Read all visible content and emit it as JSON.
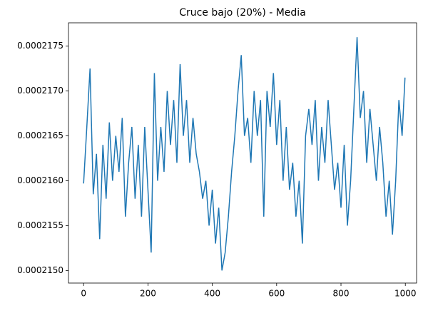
{
  "chart_data": {
    "type": "line",
    "title": "Cruce bajo (20%) - Media",
    "x": [
      0,
      10,
      20,
      30,
      40,
      50,
      60,
      70,
      80,
      90,
      100,
      110,
      120,
      130,
      140,
      150,
      160,
      170,
      180,
      190,
      200,
      210,
      220,
      230,
      240,
      250,
      260,
      270,
      280,
      290,
      300,
      310,
      320,
      330,
      340,
      350,
      360,
      370,
      380,
      390,
      400,
      410,
      420,
      430,
      440,
      450,
      460,
      470,
      480,
      490,
      500,
      510,
      520,
      530,
      540,
      550,
      560,
      570,
      580,
      590,
      600,
      610,
      620,
      630,
      640,
      650,
      660,
      670,
      680,
      690,
      700,
      710,
      720,
      730,
      740,
      750,
      760,
      770,
      780,
      790,
      800,
      810,
      820,
      830,
      840,
      850,
      860,
      870,
      880,
      890,
      900,
      910,
      920,
      930,
      940,
      950,
      960,
      970,
      980,
      990,
      999
    ],
    "series": [
      {
        "color": "#1f77b4",
        "values": [
          0.00021597,
          0.0002166,
          0.00021725,
          0.00021585,
          0.0002163,
          0.00021535,
          0.0002164,
          0.0002158,
          0.00021665,
          0.000216,
          0.0002165,
          0.0002161,
          0.0002167,
          0.0002156,
          0.0002162,
          0.0002166,
          0.0002158,
          0.0002164,
          0.0002156,
          0.0002166,
          0.0002159,
          0.0002152,
          0.0002172,
          0.000216,
          0.0002166,
          0.0002161,
          0.000217,
          0.0002164,
          0.0002169,
          0.0002162,
          0.0002173,
          0.0002165,
          0.0002169,
          0.0002162,
          0.0002167,
          0.0002163,
          0.0002161,
          0.0002158,
          0.000216,
          0.0002155,
          0.0002159,
          0.0002153,
          0.0002157,
          0.000215,
          0.0002152,
          0.0002156,
          0.0002161,
          0.0002165,
          0.000217,
          0.0002174,
          0.0002165,
          0.0002167,
          0.0002162,
          0.000217,
          0.0002165,
          0.0002169,
          0.0002156,
          0.000217,
          0.0002166,
          0.0002172,
          0.0002164,
          0.0002169,
          0.000216,
          0.0002166,
          0.0002159,
          0.0002162,
          0.0002156,
          0.000216,
          0.0002153,
          0.0002165,
          0.0002168,
          0.0002164,
          0.0002169,
          0.000216,
          0.0002166,
          0.0002162,
          0.0002169,
          0.0002164,
          0.0002159,
          0.0002162,
          0.0002157,
          0.0002164,
          0.0002155,
          0.000216,
          0.0002168,
          0.0002176,
          0.0002167,
          0.000217,
          0.0002162,
          0.0002168,
          0.0002164,
          0.000216,
          0.0002166,
          0.0002162,
          0.0002156,
          0.000216,
          0.0002154,
          0.000216,
          0.0002169,
          0.0002165,
          0.00021715
        ]
      }
    ],
    "xlim": [
      -47,
      1035
    ],
    "xticks": [
      0,
      200,
      400,
      600,
      800,
      1000
    ],
    "ylim": [
      0.00021486,
      0.00021776
    ],
    "yticks": [
      {
        "value": 0.000215,
        "label": "0.0002150"
      },
      {
        "value": 0.0002155,
        "label": "0.0002155"
      },
      {
        "value": 0.000216,
        "label": "0.0002160"
      },
      {
        "value": 0.0002165,
        "label": "0.0002165"
      },
      {
        "value": 0.000217,
        "label": "0.0002170"
      },
      {
        "value": 0.0002175,
        "label": "0.0002175"
      }
    ]
  }
}
